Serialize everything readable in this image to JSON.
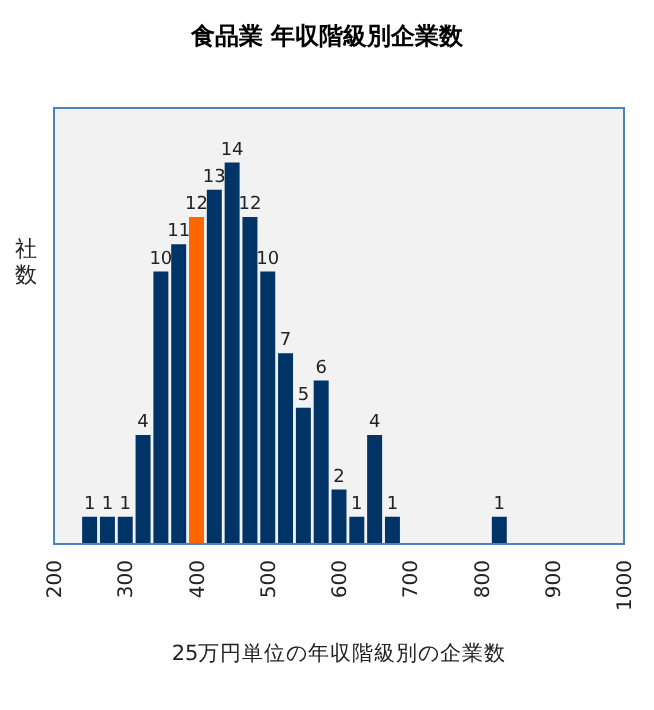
{
  "chart_data": {
    "type": "bar",
    "title": "食品業 年収階級別企業数",
    "xlabel": "25万円単位の年収階級別の企業数",
    "ylabel": "社数",
    "x": [
      250,
      275,
      300,
      325,
      350,
      375,
      400,
      425,
      450,
      475,
      500,
      525,
      550,
      575,
      600,
      625,
      650,
      675,
      825
    ],
    "values": [
      1,
      1,
      1,
      4,
      10,
      11,
      12,
      13,
      14,
      12,
      10,
      7,
      5,
      6,
      2,
      1,
      4,
      1,
      1
    ],
    "data_labels": true,
    "colors": [
      "#003366",
      "#003366",
      "#003366",
      "#003366",
      "#003366",
      "#003366",
      "#ff6600",
      "#003366",
      "#003366",
      "#003366",
      "#003366",
      "#003366",
      "#003366",
      "#003366",
      "#003366",
      "#003366",
      "#003366",
      "#003366",
      "#003366"
    ],
    "xlim": [
      200,
      1000
    ],
    "xticks": [
      200,
      300,
      400,
      500,
      600,
      700,
      800,
      900,
      1000
    ],
    "ylim": [
      0,
      16
    ],
    "tick_labels": "x"
  }
}
